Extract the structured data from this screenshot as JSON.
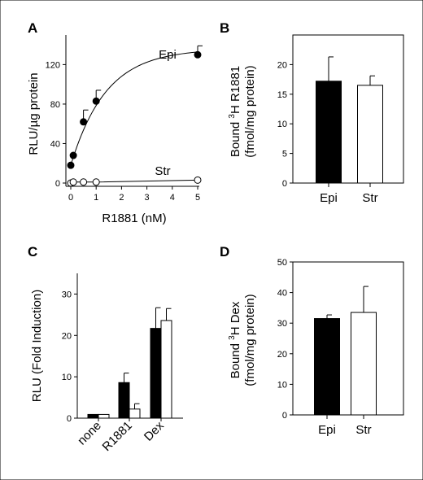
{
  "chart_data": [
    {
      "id": "A",
      "panel_label": "A",
      "type": "line",
      "xlabel": "R1881 (nM)",
      "ylabel": "RLU/µg protein",
      "xlim": [
        0,
        5
      ],
      "ylim": [
        0,
        150
      ],
      "xticks": [
        0,
        1,
        2,
        3,
        4,
        5
      ],
      "yticks": [
        0,
        40,
        80,
        120
      ],
      "grid": false,
      "series": [
        {
          "name": "Epi",
          "marker": "filled-circle",
          "x": [
            0,
            0.1,
            0.5,
            1,
            5
          ],
          "y": [
            18,
            28,
            62,
            83,
            130
          ],
          "err": [
            0,
            0,
            12,
            11,
            9
          ],
          "fit": {
            "ymax": 136,
            "k": 0.72
          }
        },
        {
          "name": "Str",
          "marker": "open-circle",
          "x": [
            0,
            0.1,
            0.5,
            1,
            5
          ],
          "y": [
            0,
            1,
            1,
            1,
            3
          ],
          "err": [
            0,
            0,
            0,
            0,
            0
          ]
        }
      ]
    },
    {
      "id": "B",
      "panel_label": "B",
      "type": "bar",
      "categories": [
        "Epi",
        "Str"
      ],
      "values": [
        17.2,
        16.5
      ],
      "errors": [
        4.1,
        1.6
      ],
      "fills": [
        "#000000",
        "#ffffff"
      ],
      "ylabel_line1_pre": "Bound ",
      "ylabel_sup": "3",
      "ylabel_line1_post": "H R1881",
      "ylabel_line2": "(fmol/mg protein)",
      "ylim": [
        0,
        25
      ],
      "yticks": [
        0,
        5,
        10,
        15,
        20
      ],
      "grid": false
    },
    {
      "id": "C",
      "panel_label": "C",
      "type": "bar",
      "categories": [
        "none",
        "R1881",
        "Dex"
      ],
      "series": [
        {
          "fill": "#000000",
          "values": [
            0.9,
            8.6,
            21.7
          ],
          "errors": [
            0,
            2.3,
            5.0
          ]
        },
        {
          "fill": "#ffffff",
          "values": [
            0.9,
            2.2,
            23.6
          ],
          "errors": [
            0,
            1.3,
            2.9
          ]
        }
      ],
      "ylabel": "RLU (Fold Induction)",
      "ylim": [
        0,
        35
      ],
      "yticks": [
        0,
        10,
        20,
        30
      ],
      "grid": false
    },
    {
      "id": "D",
      "panel_label": "D",
      "type": "bar",
      "categories": [
        "Epi",
        "Str"
      ],
      "values": [
        31.5,
        33.5
      ],
      "errors": [
        1.2,
        8.5
      ],
      "fills": [
        "#000000",
        "#ffffff"
      ],
      "ylabel_line1_pre": "Bound ",
      "ylabel_sup": "3",
      "ylabel_line1_post": "H Dex",
      "ylabel_line2": "(fmol/mg protein)",
      "ylim": [
        0,
        50
      ],
      "yticks": [
        0,
        10,
        20,
        30,
        40,
        50
      ],
      "grid": false
    }
  ]
}
